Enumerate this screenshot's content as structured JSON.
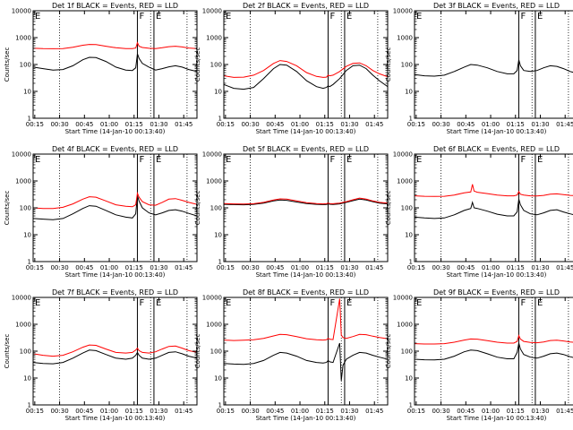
{
  "figure": {
    "background": "#ffffff"
  },
  "chart_data": {
    "type": "line",
    "layout": "3x3 grid of panels",
    "colors": {
      "events": "#000000",
      "lld": "#ff0000"
    },
    "xlabel": "Start Time (14-Jan-10 00:13:40)",
    "ylabel": "Counts/sec",
    "x_units": "minutes after 00:00 on 14-Jan-10",
    "xlim": [
      14,
      113
    ],
    "yscale": "log",
    "ylim": [
      1,
      10000
    ],
    "x_ticks": [
      15,
      30,
      45,
      60,
      75,
      90,
      105
    ],
    "x_tick_labels": [
      "00:15",
      "00:30",
      "00:45",
      "01:00",
      "01:15",
      "01:30",
      "01:45"
    ],
    "y_ticks": [
      1,
      10,
      100,
      1000,
      10000
    ],
    "y_tick_labels": [
      "1",
      "10",
      "100",
      "1000",
      "10000"
    ],
    "dotted_lines_x": [
      30,
      85,
      107
    ],
    "solid_lines_x": [
      77,
      87
    ],
    "line_annotations": [
      {
        "text": "F",
        "x": 77
      },
      {
        "text": "E",
        "x": 87
      }
    ],
    "corner_annotation": "E",
    "panels": [
      {
        "title": "Det 1f BLACK = Events, RED = LLD",
        "series": [
          {
            "color": "#000000",
            "x": [
              14,
              20,
              26,
              32,
              38,
              44,
              48,
              52,
              58,
              64,
              70,
              74,
              76,
              77,
              78,
              80,
              84,
              88,
              92,
              96,
              100,
              104,
              108,
              113
            ],
            "y": [
              80,
              70,
              62,
              65,
              90,
              150,
              185,
              180,
              130,
              80,
              62,
              60,
              75,
              250,
              170,
              110,
              80,
              62,
              70,
              82,
              90,
              80,
              65,
              55
            ]
          },
          {
            "color": "#ff0000",
            "x": [
              14,
              20,
              26,
              32,
              38,
              44,
              48,
              52,
              58,
              64,
              70,
              74,
              76,
              77,
              78,
              80,
              84,
              88,
              92,
              96,
              100,
              104,
              108,
              113
            ],
            "y": [
              400,
              390,
              385,
              390,
              440,
              520,
              560,
              550,
              480,
              420,
              390,
              390,
              410,
              650,
              480,
              430,
              400,
              390,
              420,
              460,
              480,
              450,
              410,
              390
            ]
          }
        ]
      },
      {
        "title": "Det 2f BLACK = Events, RED = LLD",
        "series": [
          {
            "color": "#000000",
            "x": [
              14,
              20,
              26,
              32,
              38,
              44,
              48,
              52,
              58,
              64,
              70,
              74,
              76,
              77,
              78,
              80,
              84,
              88,
              92,
              96,
              100,
              104,
              108,
              113
            ],
            "y": [
              18,
              13,
              12,
              14,
              30,
              70,
              100,
              95,
              55,
              25,
              15,
              13,
              14,
              16,
              15,
              18,
              30,
              60,
              90,
              95,
              70,
              40,
              25,
              15
            ]
          },
          {
            "color": "#ff0000",
            "x": [
              14,
              20,
              26,
              32,
              38,
              44,
              48,
              52,
              58,
              64,
              70,
              74,
              76,
              77,
              78,
              80,
              84,
              88,
              92,
              96,
              100,
              104,
              108,
              113
            ],
            "y": [
              38,
              33,
              34,
              40,
              60,
              110,
              140,
              130,
              90,
              50,
              36,
              33,
              34,
              40,
              38,
              40,
              55,
              85,
              110,
              115,
              90,
              60,
              45,
              35
            ]
          }
        ]
      },
      {
        "title": "Det 3f BLACK = Events, RED = LLD",
        "series": [
          {
            "color": "#000000",
            "x": [
              14,
              20,
              26,
              32,
              38,
              44,
              48,
              52,
              58,
              64,
              70,
              74,
              76,
              77,
              78,
              80,
              84,
              88,
              92,
              96,
              100,
              104,
              108,
              113
            ],
            "y": [
              42,
              38,
              37,
              40,
              55,
              80,
              100,
              95,
              75,
              55,
              45,
              45,
              60,
              150,
              90,
              60,
              55,
              60,
              75,
              90,
              85,
              70,
              55,
              45
            ]
          }
        ]
      },
      {
        "title": "Det 4f BLACK = Events, RED = LLD",
        "series": [
          {
            "color": "#000000",
            "x": [
              14,
              20,
              26,
              32,
              38,
              44,
              48,
              52,
              58,
              64,
              70,
              74,
              76,
              77,
              78,
              80,
              84,
              88,
              92,
              96,
              100,
              104,
              108,
              113
            ],
            "y": [
              40,
              38,
              36,
              40,
              60,
              95,
              120,
              115,
              80,
              55,
              45,
              42,
              60,
              280,
              180,
              100,
              65,
              55,
              65,
              80,
              85,
              75,
              62,
              50
            ]
          },
          {
            "color": "#ff0000",
            "x": [
              14,
              20,
              26,
              32,
              38,
              44,
              48,
              52,
              58,
              64,
              70,
              74,
              76,
              77,
              78,
              80,
              84,
              88,
              92,
              96,
              100,
              104,
              108,
              113
            ],
            "y": [
              100,
              95,
              95,
              105,
              140,
              210,
              260,
              250,
              180,
              130,
              115,
              110,
              130,
              350,
              250,
              170,
              130,
              125,
              160,
              210,
              220,
              190,
              160,
              135
            ]
          }
        ]
      },
      {
        "title": "Det 5f BLACK = Events, RED = LLD",
        "series": [
          {
            "color": "#000000",
            "x": [
              14,
              20,
              26,
              32,
              38,
              44,
              48,
              52,
              58,
              64,
              70,
              74,
              76,
              77,
              78,
              80,
              84,
              88,
              92,
              96,
              100,
              104,
              108,
              113
            ],
            "y": [
              135,
              132,
              130,
              135,
              150,
              180,
              195,
              190,
              165,
              145,
              135,
              132,
              134,
              140,
              136,
              134,
              140,
              160,
              185,
              210,
              195,
              170,
              150,
              140
            ]
          },
          {
            "color": "#ff0000",
            "x": [
              14,
              20,
              26,
              32,
              38,
              44,
              48,
              52,
              58,
              64,
              70,
              74,
              76,
              77,
              78,
              80,
              84,
              88,
              92,
              96,
              100,
              104,
              108,
              113
            ],
            "y": [
              145,
              140,
              138,
              142,
              160,
              195,
              215,
              210,
              180,
              155,
              145,
              140,
              142,
              150,
              145,
              142,
              150,
              170,
              200,
              230,
              210,
              180,
              160,
              150
            ]
          }
        ]
      },
      {
        "title": "Det 6f BLACK = Events, RED = LLD",
        "series": [
          {
            "color": "#000000",
            "x": [
              14,
              20,
              26,
              32,
              38,
              44,
              48,
              49,
              50,
              52,
              58,
              64,
              70,
              74,
              76,
              77,
              78,
              80,
              84,
              88,
              92,
              96,
              100,
              104,
              108,
              113
            ],
            "y": [
              45,
              42,
              40,
              42,
              55,
              80,
              95,
              160,
              100,
              95,
              75,
              58,
              50,
              50,
              70,
              210,
              130,
              80,
              60,
              55,
              65,
              80,
              85,
              70,
              60,
              50
            ]
          },
          {
            "color": "#ff0000",
            "x": [
              14,
              20,
              26,
              32,
              38,
              44,
              48,
              49,
              50,
              52,
              58,
              64,
              70,
              74,
              76,
              77,
              78,
              80,
              84,
              88,
              92,
              96,
              100,
              104,
              108,
              113
            ],
            "y": [
              280,
              270,
              265,
              270,
              300,
              360,
              390,
              750,
              420,
              380,
              340,
              300,
              280,
              280,
              300,
              400,
              320,
              300,
              280,
              275,
              290,
              320,
              330,
              310,
              290,
              280
            ]
          }
        ]
      },
      {
        "title": "Det 7f BLACK = Events, RED = LLD",
        "series": [
          {
            "color": "#000000",
            "x": [
              14,
              20,
              26,
              32,
              38,
              44,
              48,
              52,
              58,
              64,
              70,
              74,
              76,
              77,
              78,
              80,
              84,
              88,
              92,
              96,
              100,
              104,
              108,
              113
            ],
            "y": [
              38,
              35,
              34,
              38,
              55,
              85,
              110,
              105,
              75,
              55,
              50,
              55,
              70,
              90,
              70,
              55,
              50,
              55,
              70,
              90,
              95,
              80,
              65,
              55
            ]
          },
          {
            "color": "#ff0000",
            "x": [
              14,
              20,
              26,
              32,
              38,
              44,
              48,
              52,
              58,
              64,
              70,
              74,
              76,
              77,
              78,
              80,
              84,
              88,
              92,
              96,
              100,
              104,
              108,
              113
            ],
            "y": [
              80,
              70,
              65,
              70,
              95,
              140,
              170,
              165,
              120,
              90,
              85,
              90,
              110,
              130,
              105,
              90,
              85,
              95,
              120,
              150,
              155,
              130,
              105,
              90
            ]
          }
        ]
      },
      {
        "title": "Det 8f BLACK = Events, RED = LLD",
        "series": [
          {
            "color": "#000000",
            "x": [
              14,
              20,
              26,
              32,
              38,
              44,
              48,
              52,
              58,
              64,
              70,
              74,
              76,
              77,
              78,
              80,
              84,
              85,
              86,
              88,
              92,
              96,
              100,
              104,
              108,
              113
            ],
            "y": [
              35,
              33,
              32,
              35,
              45,
              70,
              90,
              85,
              65,
              45,
              38,
              36,
              38,
              45,
              40,
              38,
              200,
              8,
              30,
              50,
              70,
              90,
              85,
              70,
              60,
              50
            ]
          },
          {
            "color": "#ff0000",
            "x": [
              14,
              20,
              26,
              32,
              38,
              44,
              48,
              52,
              58,
              64,
              70,
              74,
              76,
              77,
              78,
              80,
              84,
              85,
              86,
              88,
              92,
              96,
              100,
              104,
              108,
              113
            ],
            "y": [
              260,
              250,
              255,
              265,
              300,
              370,
              420,
              410,
              350,
              290,
              265,
              260,
              265,
              300,
              280,
              270,
              9000,
              400,
              320,
              300,
              350,
              420,
              410,
              360,
              320,
              290
            ]
          }
        ]
      },
      {
        "title": "Det 9f BLACK = Events, RED = LLD",
        "series": [
          {
            "color": "#000000",
            "x": [
              14,
              20,
              26,
              32,
              38,
              44,
              48,
              52,
              58,
              64,
              70,
              74,
              76,
              77,
              78,
              80,
              84,
              88,
              92,
              96,
              100,
              104,
              108,
              113
            ],
            "y": [
              50,
              48,
              47,
              50,
              65,
              95,
              110,
              105,
              80,
              60,
              52,
              52,
              90,
              200,
              120,
              75,
              60,
              55,
              65,
              80,
              85,
              75,
              62,
              52
            ]
          },
          {
            "color": "#ff0000",
            "x": [
              14,
              20,
              26,
              32,
              38,
              44,
              48,
              52,
              58,
              64,
              70,
              74,
              76,
              77,
              78,
              80,
              84,
              88,
              92,
              96,
              100,
              104,
              108,
              113
            ],
            "y": [
              190,
              185,
              185,
              190,
              215,
              260,
              285,
              280,
              245,
              215,
              200,
              200,
              230,
              380,
              280,
              230,
              210,
              205,
              220,
              250,
              255,
              240,
              220,
              205
            ]
          }
        ]
      }
    ]
  }
}
